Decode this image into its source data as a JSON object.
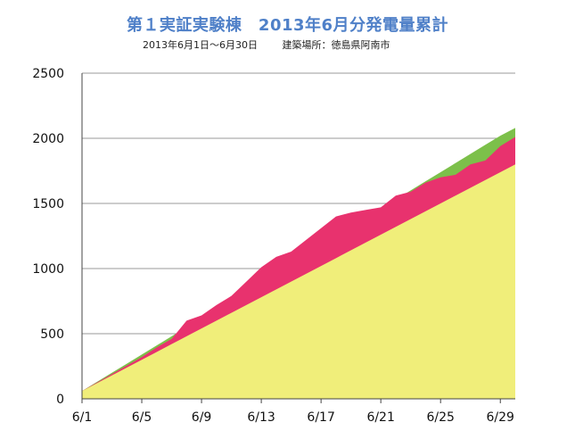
{
  "chart_data": {
    "type": "area",
    "title": "第１実証実験棟　2013年6月分発電量累計",
    "subtitle_period": "2013年6月1日〜6月30日",
    "subtitle_location": "建築場所：徳島県阿南市",
    "xlabel": "",
    "ylabel": "",
    "x": [
      1,
      2,
      3,
      4,
      5,
      6,
      7,
      8,
      9,
      10,
      11,
      12,
      13,
      14,
      15,
      16,
      17,
      18,
      19,
      20,
      21,
      22,
      23,
      24,
      25,
      26,
      27,
      28,
      29,
      30
    ],
    "x_ticks": [
      1,
      5,
      9,
      13,
      17,
      21,
      25,
      29
    ],
    "x_tick_labels": [
      "6/1",
      "6/5",
      "6/9",
      "6/13",
      "6/17",
      "6/21",
      "6/25",
      "6/29"
    ],
    "ylim": [
      0,
      2500
    ],
    "y_ticks": [
      0,
      500,
      1000,
      1500,
      2000,
      2500
    ],
    "grid": "horizontal",
    "series": [
      {
        "color": "#f0ee7a",
        "values": [
          60,
          120,
          180,
          240,
          300,
          360,
          420,
          480,
          540,
          600,
          660,
          720,
          780,
          840,
          900,
          960,
          1020,
          1080,
          1140,
          1200,
          1260,
          1320,
          1380,
          1440,
          1500,
          1560,
          1620,
          1680,
          1740,
          1800
        ]
      },
      {
        "color": "#e8326e",
        "values": [
          60,
          125,
          190,
          255,
          320,
          395,
          460,
          600,
          640,
          720,
          790,
          900,
          1010,
          1090,
          1130,
          1220,
          1310,
          1400,
          1430,
          1450,
          1470,
          1560,
          1590,
          1660,
          1700,
          1720,
          1800,
          1830,
          1940,
          2010
        ]
      },
      {
        "color": "#7cc04a",
        "values": [
          60,
          130,
          200,
          270,
          340,
          410,
          480,
          550,
          620,
          690,
          760,
          830,
          900,
          970,
          1040,
          1110,
          1180,
          1250,
          1320,
          1390,
          1460,
          1530,
          1600,
          1670,
          1740,
          1810,
          1880,
          1950,
          2020,
          2080
        ]
      }
    ]
  }
}
